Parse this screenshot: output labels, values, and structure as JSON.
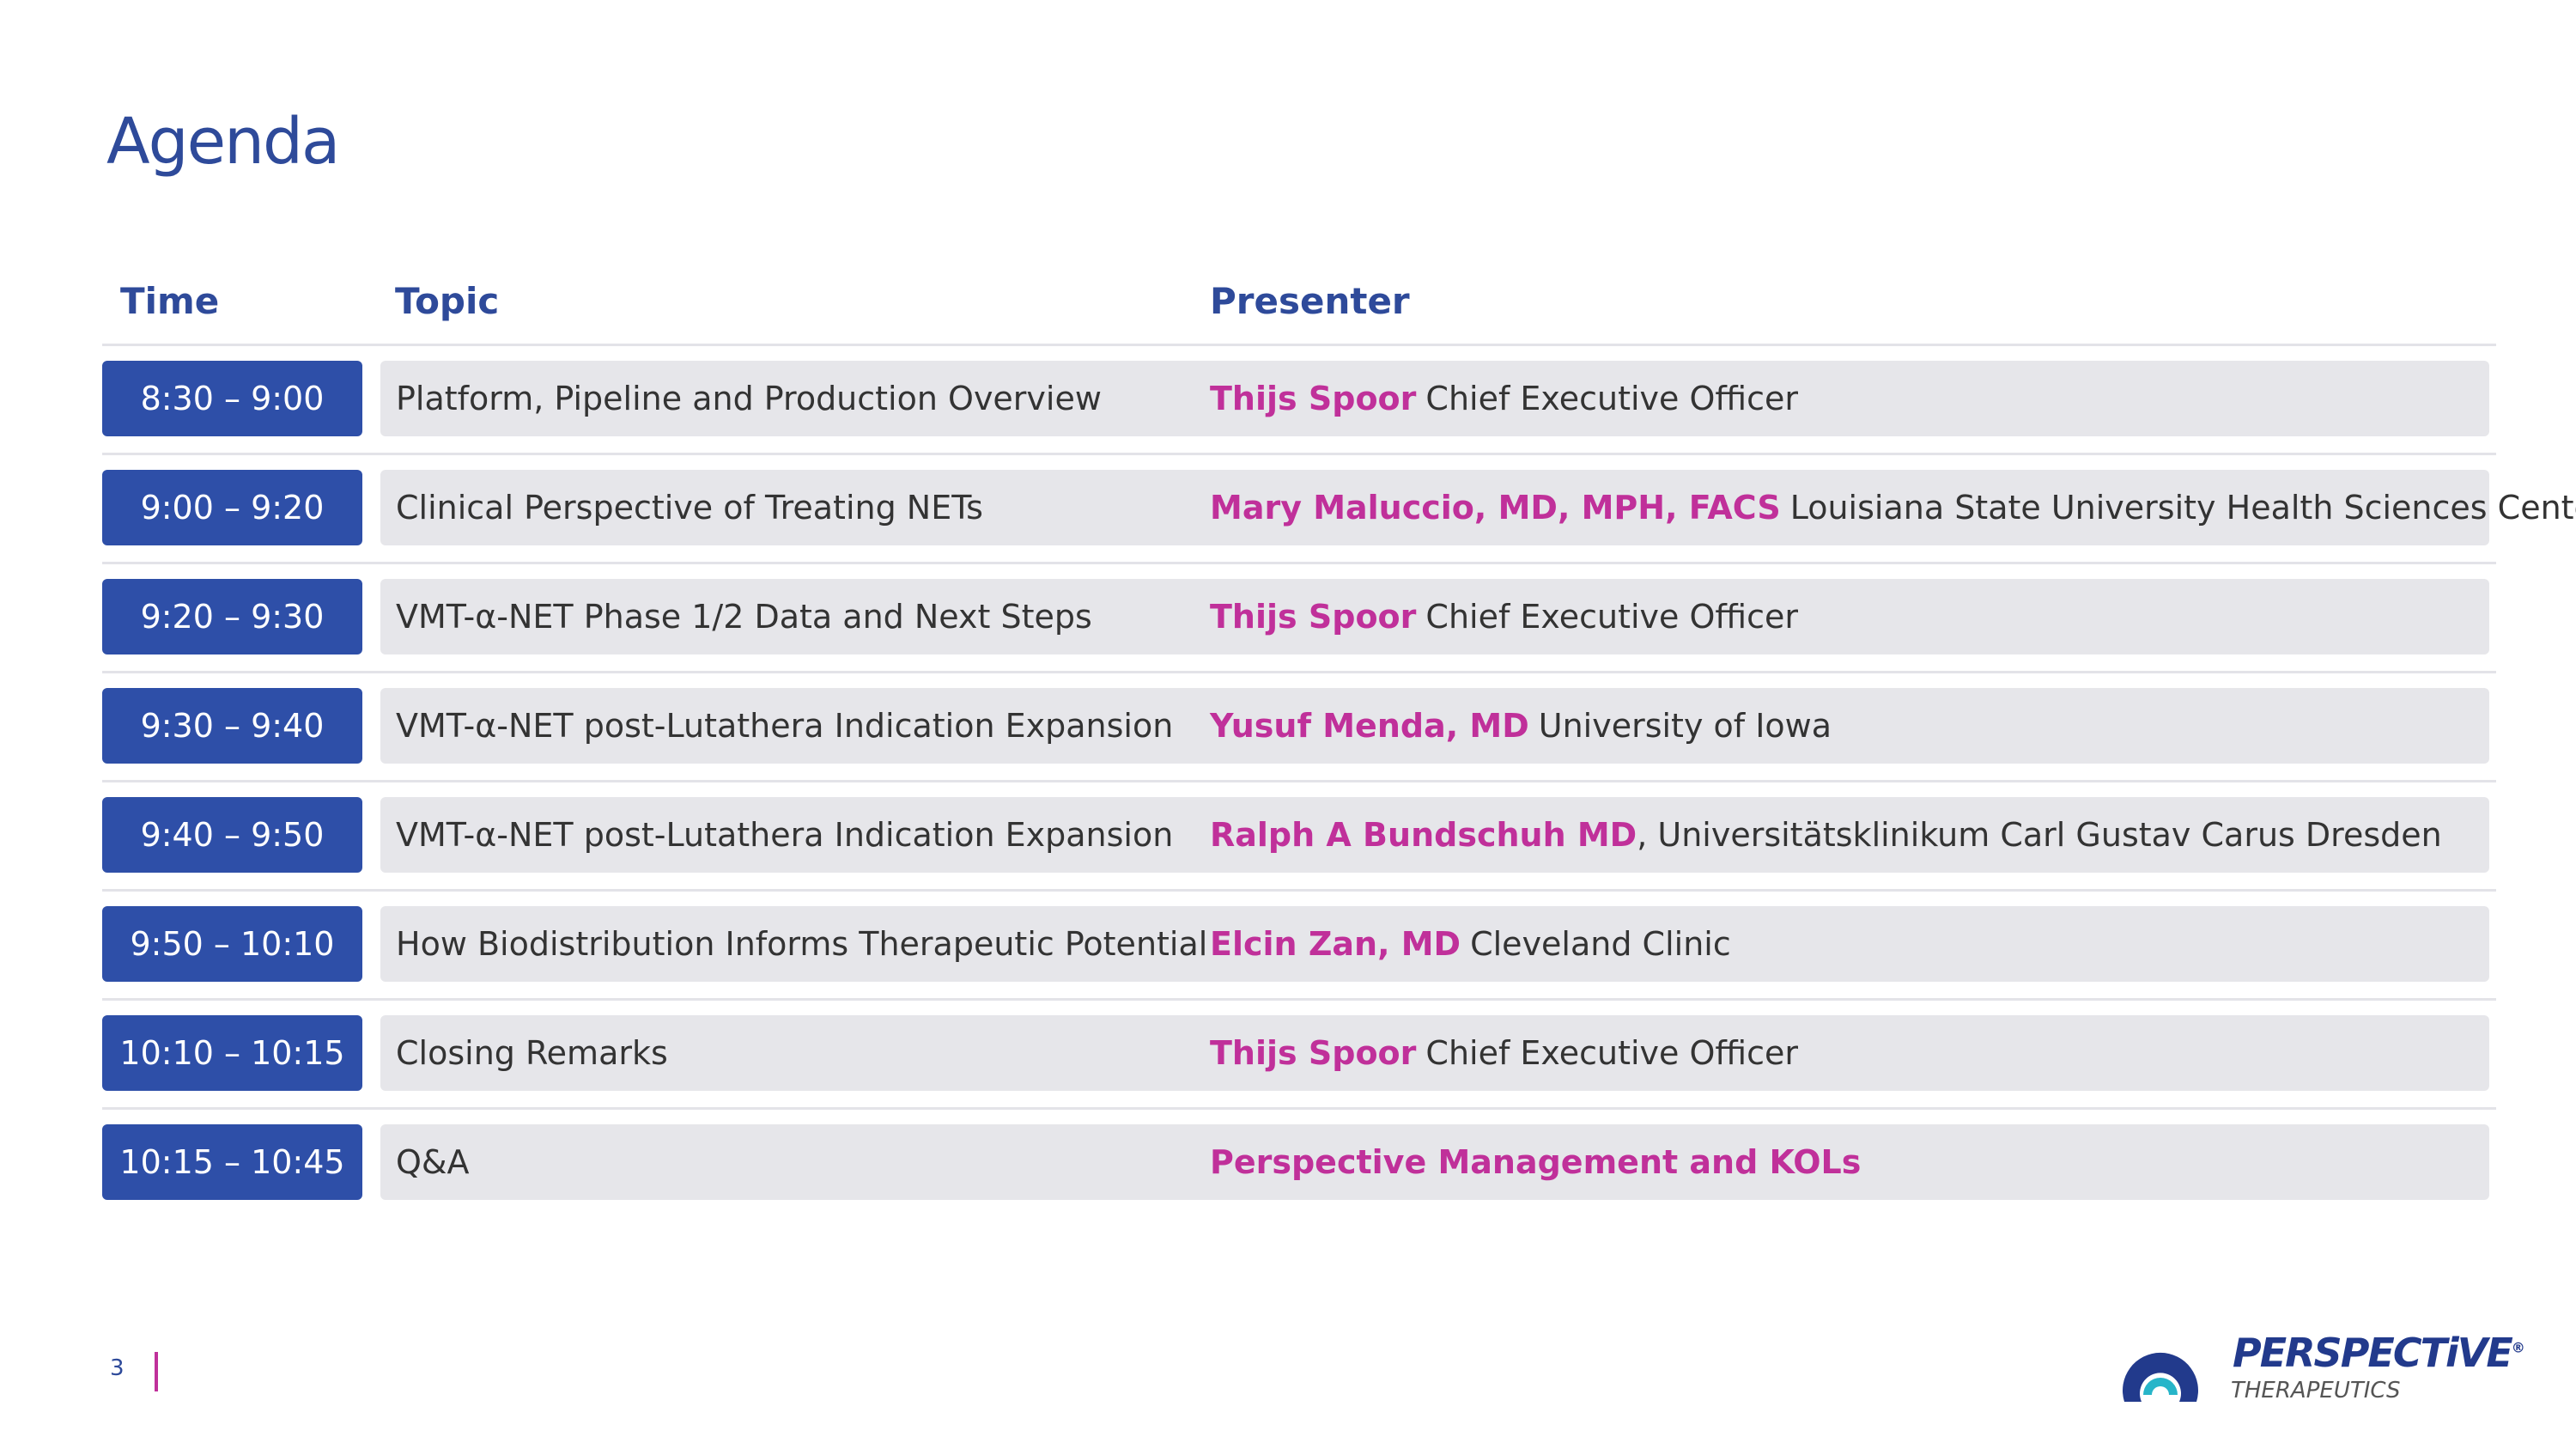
{
  "header": {
    "title": "Agenda"
  },
  "table": {
    "columns": [
      "Time",
      "Topic",
      "Presenter"
    ],
    "rows": [
      {
        "time": "8:30 – 9:00",
        "topic": "Platform, Pipeline and Production Overview",
        "presenter": "Thijs Spoor",
        "affiliation": "Chief Executive Officer"
      },
      {
        "time": "9:00 – 9:20",
        "topic": "Clinical Perspective of Treating NETs",
        "presenter": "Mary Maluccio, MD, MPH, FACS",
        "affiliation": "Louisiana State University Health Sciences Center"
      },
      {
        "time": "9:20 – 9:30",
        "topic": "VMT-α-NET Phase 1/2 Data and Next Steps",
        "presenter": "Thijs Spoor",
        "affiliation": "Chief Executive Officer"
      },
      {
        "time": "9:30 – 9:40",
        "topic": "VMT-α-NET post-Lutathera Indication Expansion",
        "presenter": "Yusuf Menda, MD",
        "affiliation": "University of Iowa"
      },
      {
        "time": "9:40 – 9:50",
        "topic": "VMT-α-NET post-Lutathera Indication Expansion",
        "presenter": "Ralph A Bundschuh MD",
        "affiliation": ", Universitätsklinikum Carl Gustav Carus Dresden"
      },
      {
        "time": "9:50 – 10:10",
        "topic": "How Biodistribution Informs Therapeutic Potential",
        "presenter": "Elcin Zan, MD",
        "affiliation": "Cleveland Clinic"
      },
      {
        "time": "10:10 – 10:15",
        "topic": "Closing Remarks",
        "presenter": "Thijs Spoor",
        "affiliation": "Chief Executive Officer"
      },
      {
        "time": "10:15 – 10:45",
        "topic": "Q&A",
        "presenter": "Perspective Management and KOLs"
      }
    ]
  },
  "footer": {
    "page_number": "3",
    "logo": {
      "name": "PERSPECTiVE",
      "mark": "®",
      "tagline": "THERAPEUTICS"
    }
  }
}
